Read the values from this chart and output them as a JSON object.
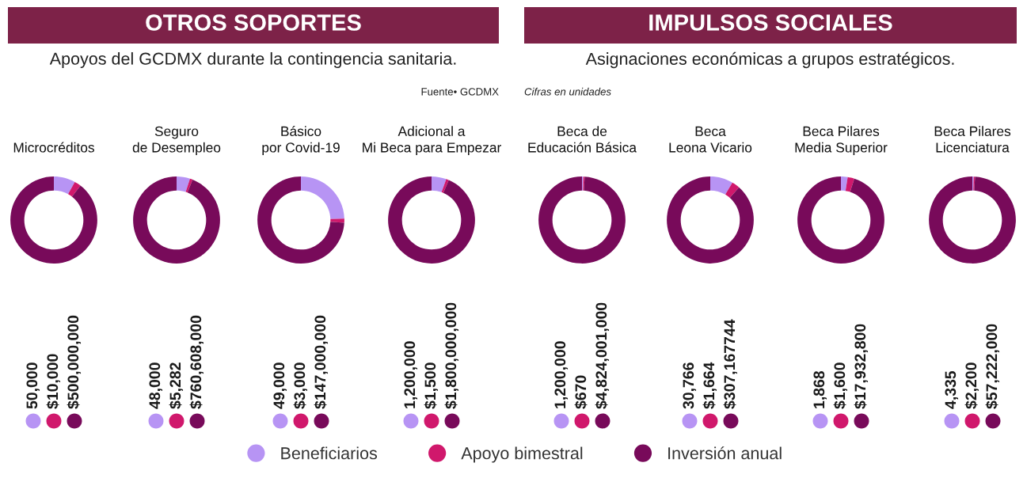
{
  "chart_data": [
    {
      "type": "donut",
      "title": "Microcréditos",
      "categories": [
        "Beneficiarios",
        "Apoyo bimestral",
        "Inversión anual"
      ],
      "values": [
        8,
        2.5,
        89.5
      ],
      "colors": [
        "#b794f4",
        "#d0186c",
        "#780a5a"
      ],
      "legend": "bottom",
      "annotations": [
        "50,000",
        "$10,000",
        "$500,000,000",
        "OTROS SOPORTES",
        "Apoyos del GCDMX durante la contingencia sanitaria.",
        "Fuente• GCDMX"
      ]
    },
    {
      "type": "donut",
      "title": "Seguro\nde Desempleo",
      "categories": [
        null,
        null,
        null
      ],
      "values": [
        5,
        1,
        94
      ],
      "colors": [
        "#b794f4",
        "#d0186c",
        "#780a5a"
      ],
      "annotations": [
        "48,000",
        "$5,282",
        "$760,608,000"
      ]
    },
    {
      "type": "donut",
      "title": "Básico\npor Covid-19",
      "categories": [
        null,
        null,
        null
      ],
      "values": [
        24.5,
        1.5,
        74
      ],
      "colors": [
        "#b794f4",
        "#d0186c",
        "#780a5a"
      ],
      "annotations": [
        "49,000",
        "$3,000",
        "$147,000,000"
      ]
    },
    {
      "type": "donut",
      "title": "Adicional a\nMi Beca para Empezar",
      "categories": [
        null,
        null,
        null
      ],
      "values": [
        5.5,
        1,
        93.5
      ],
      "colors": [
        "#b794f4",
        "#d0186c",
        "#780a5a"
      ],
      "annotations": [
        "1,200,000",
        "$1,500",
        "$1,800,000,000"
      ]
    },
    {
      "type": "donut",
      "title": "Beca de\nEducación Básica",
      "categories": [
        null,
        null,
        null
      ],
      "values": [
        0.5,
        0.5,
        99
      ],
      "colors": [
        "#b794f4",
        "#d0186c",
        "#780a5a"
      ],
      "annotations": [
        "1,200,000",
        "$670",
        "$4,824,001,000",
        "IMPULSOS SOCIALES",
        "Asignaciones económicas a grupos estratégicos.",
        "Cifras en unidades"
      ]
    },
    {
      "type": "donut",
      "title": "Beca\nLeona Vicario",
      "categories": [
        null,
        null,
        null
      ],
      "values": [
        8.5,
        3,
        88.5
      ],
      "colors": [
        "#b794f4",
        "#d0186c",
        "#780a5a"
      ],
      "annotations": [
        "30,766",
        "$1,664",
        "$307,167744"
      ]
    },
    {
      "type": "donut",
      "title": "Beca Pilares\nMedia Superior",
      "categories": [
        null,
        null,
        null
      ],
      "values": [
        2.5,
        2.5,
        95
      ],
      "colors": [
        "#b794f4",
        "#d0186c",
        "#780a5a"
      ],
      "annotations": [
        "1,868",
        "$1,600",
        "$17,932,800"
      ]
    },
    {
      "type": "donut",
      "title": "Beca Pilares\nLicenciatura",
      "categories": [
        null,
        null,
        null
      ],
      "values": [
        0.5,
        0.5,
        99
      ],
      "colors": [
        "#b794f4",
        "#d0186c",
        "#780a5a"
      ],
      "annotations": [
        "4,335",
        "$2,200",
        "$57,222,000"
      ]
    }
  ]
}
